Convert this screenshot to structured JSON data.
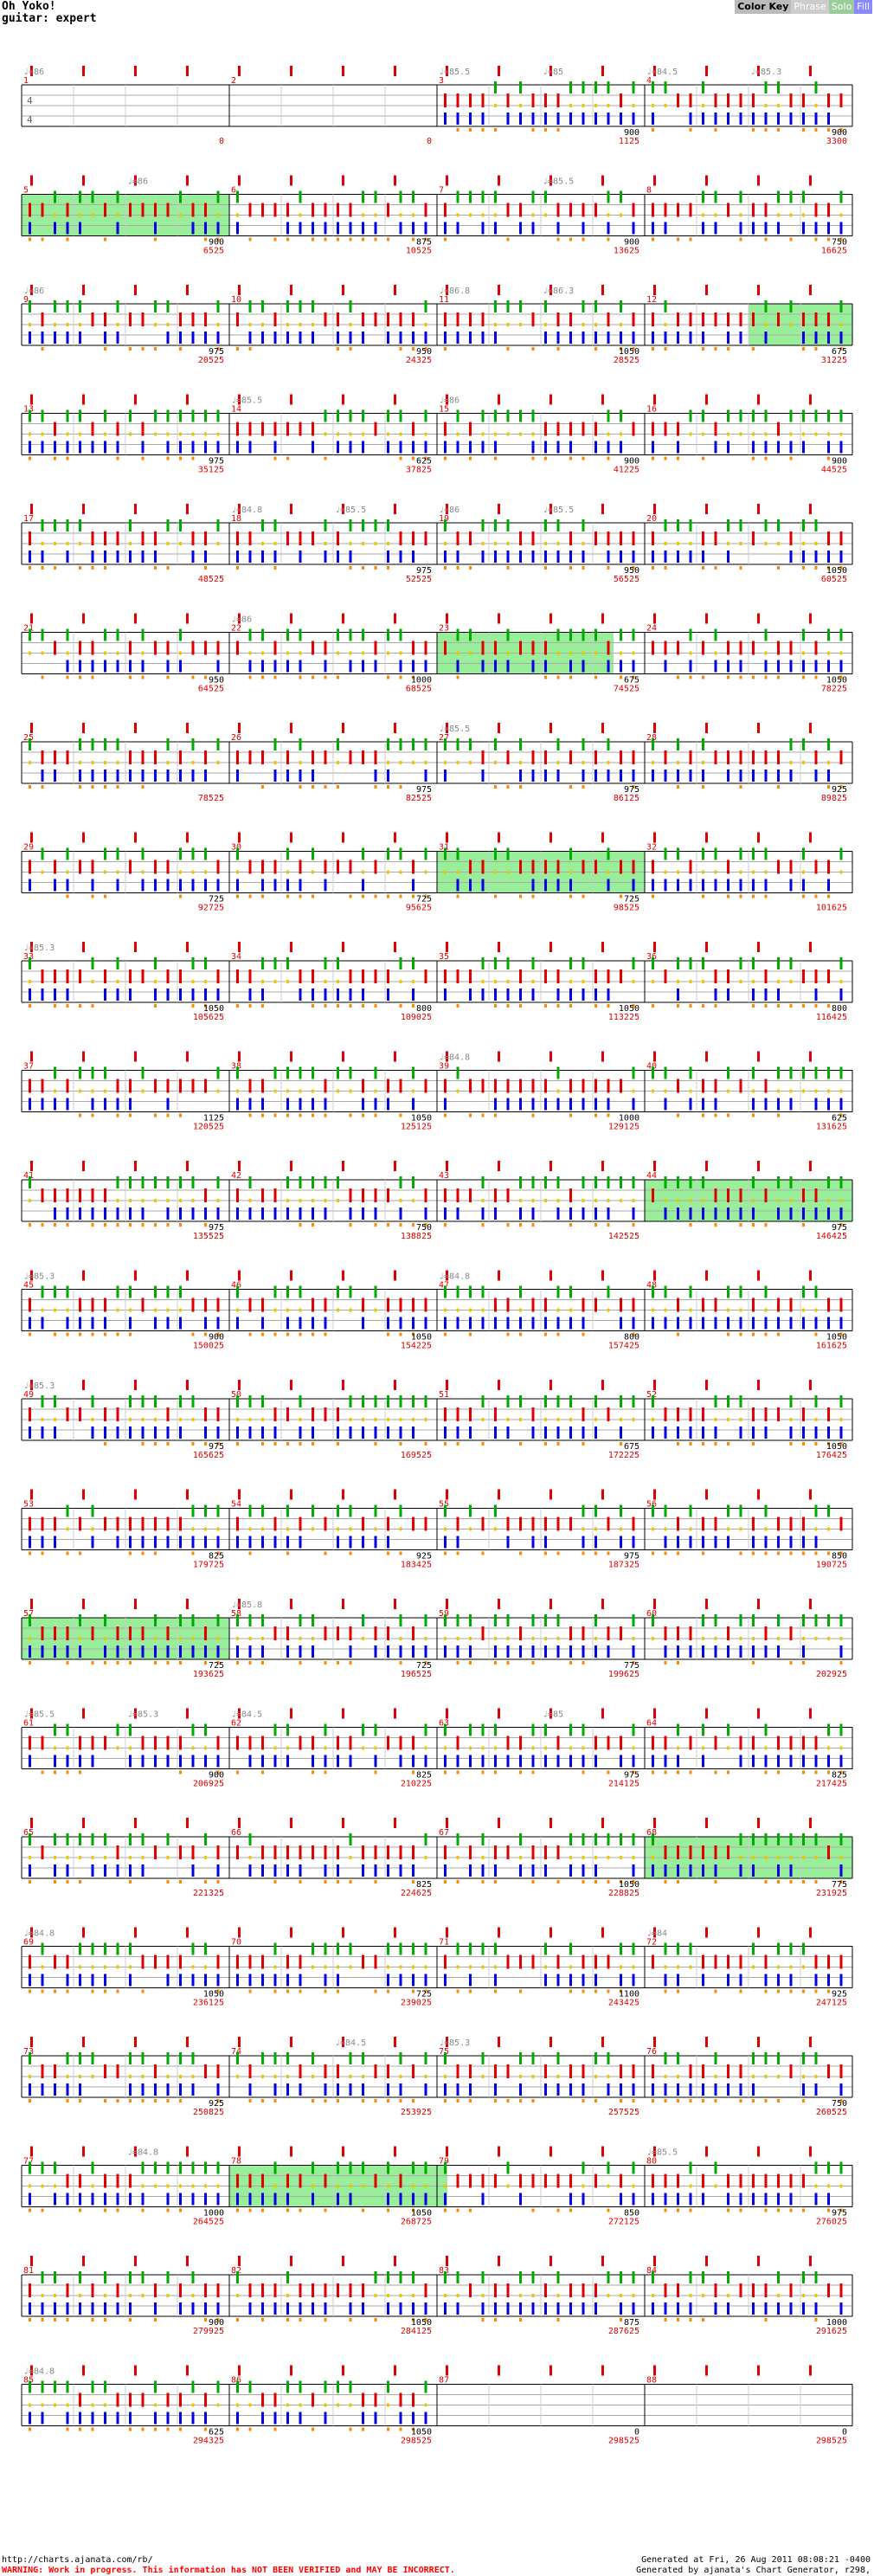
{
  "header": {
    "title": "Oh Yoko!",
    "subtitle": "guitar: expert"
  },
  "color_key": {
    "title": "Color Key",
    "phrase": "Phrase",
    "solo": "Solo",
    "fill": "Fill"
  },
  "colors": {
    "green": "#00aa00",
    "red": "#e00000",
    "yellow": "#e8c800",
    "blue": "#0000e0",
    "orange": "#ff8800",
    "od": "#99ee99",
    "measure": "#dd0000",
    "tempo": "#888888"
  },
  "rows": [
    {
      "m": [
        1,
        2,
        3,
        4
      ],
      "vals": [
        "0",
        "0",
        "1125",
        "3300"
      ],
      "dens": [
        "",
        "",
        "900",
        "900"
      ],
      "bpm": [
        {
          "q": 0,
          "t": "♩=86"
        },
        {
          "q": 2,
          "t": "♩=85.5"
        },
        {
          "q": 2.5,
          "t": "♩=85"
        },
        {
          "q": 3,
          "t": "♩=84.5"
        },
        {
          "q": 3.5,
          "t": "♩=85.3"
        }
      ],
      "od": []
    },
    {
      "m": [
        5,
        6,
        7,
        8
      ],
      "vals": [
        "6525",
        "10525",
        "13625",
        "16625"
      ],
      "dens": [
        "900",
        "875",
        "900",
        "750"
      ],
      "bpm": [
        {
          "q": 0.5,
          "t": "♩=86"
        },
        {
          "q": 2.5,
          "t": "♩=85.5"
        }
      ],
      "od": [
        [
          0,
          1
        ]
      ]
    },
    {
      "m": [
        9,
        10,
        11,
        12
      ],
      "vals": [
        "20525",
        "24325",
        "28525",
        "31225"
      ],
      "dens": [
        "975",
        "950",
        "1050",
        "675"
      ],
      "bpm": [
        {
          "q": 0,
          "t": "♩=86"
        },
        {
          "q": 2,
          "t": "♩=86.8"
        },
        {
          "q": 2.5,
          "t": "♩=86.3"
        }
      ],
      "od": [
        [
          3.5,
          4
        ]
      ]
    },
    {
      "m": [
        13,
        14,
        15,
        16
      ],
      "vals": [
        "35125",
        "37825",
        "41225",
        "44525"
      ],
      "dens": [
        "975",
        "625",
        "900",
        "900"
      ],
      "bpm": [
        {
          "q": 1,
          "t": "♩=85.5"
        },
        {
          "q": 2,
          "t": "♩=86"
        }
      ],
      "od": []
    },
    {
      "m": [
        17,
        18,
        19,
        20
      ],
      "vals": [
        "48525",
        "52525",
        "56525",
        "60525"
      ],
      "dens": [
        "",
        "975",
        "950",
        "1050"
      ],
      "bpm": [
        {
          "q": 1,
          "t": "♩=84.8"
        },
        {
          "q": 1.5,
          "t": "♩=85.5"
        },
        {
          "q": 2,
          "t": "♩=86"
        },
        {
          "q": 2.5,
          "t": "♩=85.5"
        }
      ],
      "od": []
    },
    {
      "m": [
        21,
        22,
        23,
        24
      ],
      "vals": [
        "64525",
        "68525",
        "74525",
        "78225"
      ],
      "dens": [
        "950",
        "1000",
        "675",
        "1050"
      ],
      "bpm": [
        {
          "q": 1,
          "t": "♩=86"
        }
      ],
      "od": [
        [
          2,
          2.85
        ]
      ]
    },
    {
      "m": [
        25,
        26,
        27,
        28
      ],
      "vals": [
        "78525",
        "82525",
        "86125",
        "89825"
      ],
      "dens": [
        "",
        "975",
        "975",
        "925"
      ],
      "bpm": [
        {
          "q": 2,
          "t": "♩=85.5"
        }
      ],
      "od": []
    },
    {
      "m": [
        29,
        30,
        31,
        32
      ],
      "vals": [
        "92725",
        "95625",
        "98525",
        "101625"
      ],
      "dens": [
        "725",
        "725",
        "725",
        ""
      ],
      "bpm": [],
      "od": [
        [
          2,
          3
        ]
      ]
    },
    {
      "m": [
        33,
        34,
        35,
        36
      ],
      "vals": [
        "105625",
        "109025",
        "113225",
        "116425"
      ],
      "dens": [
        "1050",
        "800",
        "1050",
        "800"
      ],
      "bpm": [
        {
          "q": 0,
          "t": "♩=85.3"
        }
      ],
      "od": []
    },
    {
      "m": [
        37,
        38,
        39,
        40
      ],
      "vals": [
        "120525",
        "125125",
        "129125",
        "131625"
      ],
      "dens": [
        "1125",
        "1050",
        "1000",
        "625"
      ],
      "bpm": [
        {
          "q": 2,
          "t": "♩=84.8"
        }
      ],
      "od": []
    },
    {
      "m": [
        41,
        42,
        43,
        44
      ],
      "vals": [
        "135525",
        "138825",
        "142525",
        "146425"
      ],
      "dens": [
        "975",
        "750",
        "",
        "975"
      ],
      "bpm": [],
      "od": [
        [
          3,
          4
        ]
      ]
    },
    {
      "m": [
        45,
        46,
        47,
        48
      ],
      "vals": [
        "150025",
        "154225",
        "157425",
        "161625"
      ],
      "dens": [
        "900",
        "1050",
        "800",
        "1050"
      ],
      "bpm": [
        {
          "q": 0,
          "t": "♩=85.3"
        },
        {
          "q": 2,
          "t": "♩=84.8"
        }
      ],
      "od": []
    },
    {
      "m": [
        49,
        50,
        51,
        52
      ],
      "vals": [
        "165625",
        "169525",
        "172225",
        "176425"
      ],
      "dens": [
        "975",
        "",
        "675",
        "1050"
      ],
      "bpm": [
        {
          "q": 0,
          "t": "♩=85.3"
        }
      ],
      "od": []
    },
    {
      "m": [
        53,
        54,
        55,
        56
      ],
      "vals": [
        "179725",
        "183425",
        "187325",
        "190725"
      ],
      "dens": [
        "825",
        "925",
        "975",
        "850"
      ],
      "bpm": [],
      "od": []
    },
    {
      "m": [
        57,
        58,
        59,
        60
      ],
      "vals": [
        "193625",
        "196525",
        "199625",
        "202925"
      ],
      "dens": [
        "725",
        "725",
        "775",
        ""
      ],
      "bpm": [
        {
          "q": 1,
          "t": "♩=85.8"
        }
      ],
      "od": [
        [
          0,
          1
        ]
      ]
    },
    {
      "m": [
        61,
        62,
        63,
        64
      ],
      "vals": [
        "206925",
        "210225",
        "214125",
        "217425"
      ],
      "dens": [
        "900",
        "825",
        "975",
        "825"
      ],
      "bpm": [
        {
          "q": 0,
          "t": "♩=85.5"
        },
        {
          "q": 0.5,
          "t": "♩=85.3"
        },
        {
          "q": 1,
          "t": "♩=84.5"
        },
        {
          "q": 2.5,
          "t": "♩=85"
        }
      ],
      "od": []
    },
    {
      "m": [
        65,
        66,
        67,
        68
      ],
      "vals": [
        "221325",
        "224625",
        "228825",
        "231925"
      ],
      "dens": [
        "",
        "825",
        "1050",
        "775"
      ],
      "bpm": [],
      "od": [
        [
          3,
          4
        ]
      ]
    },
    {
      "m": [
        69,
        70,
        71,
        72
      ],
      "vals": [
        "236125",
        "239025",
        "243425",
        "247125"
      ],
      "dens": [
        "1050",
        "725",
        "1100",
        "925"
      ],
      "bpm": [
        {
          "q": 0,
          "t": "♩=84.8"
        },
        {
          "q": 3,
          "t": "♩=84"
        }
      ],
      "od": []
    },
    {
      "m": [
        73,
        74,
        75,
        76
      ],
      "vals": [
        "250825",
        "253925",
        "257525",
        "260525"
      ],
      "dens": [
        "925",
        "",
        "",
        "750"
      ],
      "bpm": [
        {
          "q": 1.5,
          "t": "♩=84.5"
        },
        {
          "q": 2,
          "t": "♩=85.3"
        }
      ],
      "od": []
    },
    {
      "m": [
        77,
        78,
        79,
        80
      ],
      "vals": [
        "264525",
        "268725",
        "272125",
        "276025"
      ],
      "dens": [
        "1000",
        "1050",
        "850",
        "975"
      ],
      "bpm": [
        {
          "q": 0.5,
          "t": "♩=84.8"
        },
        {
          "q": 3,
          "t": "♩=85.5"
        }
      ],
      "od": [
        [
          1,
          2.05
        ]
      ]
    },
    {
      "m": [
        81,
        82,
        83,
        84
      ],
      "vals": [
        "279925",
        "284125",
        "287625",
        "291625"
      ],
      "dens": [
        "900",
        "1050",
        "875",
        "1000"
      ],
      "bpm": [],
      "od": []
    },
    {
      "m": [
        85,
        86,
        87,
        88
      ],
      "vals": [
        "294325",
        "298525",
        "298525",
        "298525"
      ],
      "dens": [
        "625",
        "1050",
        "0",
        "0"
      ],
      "bpm": [
        {
          "q": 0,
          "t": "♩=84.8"
        }
      ],
      "od": []
    }
  ],
  "footer": {
    "url": "http://charts.ajanata.com/rb/",
    "warning": "WARNING: Work in progress. This information has NOT BEEN VERIFIED and MAY BE INCORRECT.",
    "generated": "Generated at Fri, 26 Aug 2011 08:08:21 -0400",
    "generator": "Generated by ajanata's Chart Generator, r298,"
  }
}
